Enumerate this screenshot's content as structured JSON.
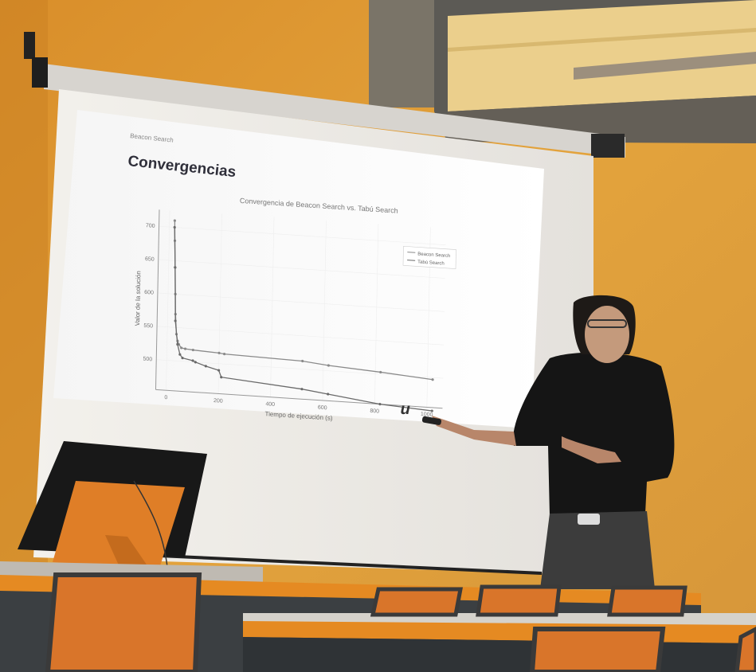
{
  "slide": {
    "header": "Beacon Search",
    "title": "Convergencias",
    "logo_text": "u",
    "chart_data": {
      "type": "line",
      "title": "Convergencia de Beacon Search vs. Tabú Search",
      "xlabel": "Tiempo de ejecución (s)",
      "ylabel": "Valor de la solución",
      "xlim": [
        -40,
        1060
      ],
      "ylim": [
        455,
        725
      ],
      "x_ticks": [
        0,
        200,
        400,
        600,
        800,
        1000
      ],
      "y_ticks": [
        500,
        550,
        600,
        650,
        700
      ],
      "grid": true,
      "legend_position": "top-right",
      "series": [
        {
          "name": "Beacon Search",
          "color": "#8a8a8a",
          "x": [
            20,
            22,
            25,
            28,
            30,
            35,
            40,
            45,
            55,
            70,
            100,
            200,
            220,
            520,
            620,
            820,
            1020
          ],
          "y": [
            710,
            680,
            640,
            600,
            570,
            540,
            530,
            525,
            520,
            519,
            518,
            516,
            515,
            512,
            508,
            503,
            497
          ]
        },
        {
          "name": "Tabú Search",
          "color": "#6a6a6a",
          "x": [
            20,
            25,
            30,
            40,
            50,
            60,
            100,
            110,
            150,
            200,
            210,
            520,
            620,
            820,
            1020
          ],
          "y": [
            700,
            640,
            560,
            525,
            510,
            505,
            502,
            500,
            495,
            490,
            480,
            470,
            465,
            455,
            450
          ]
        }
      ]
    }
  },
  "colors": {
    "wall": "#e0a035",
    "screen": "#ece9e4",
    "shirt": "#151515",
    "desk_edge": "#e58a22",
    "chair": "#d9752a"
  }
}
